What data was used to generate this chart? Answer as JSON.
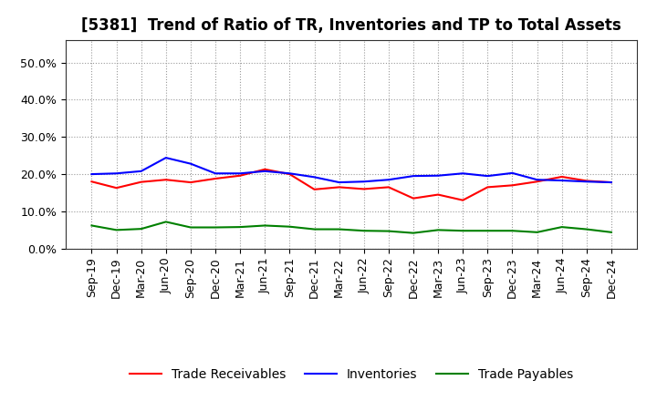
{
  "title": "[5381]  Trend of Ratio of TR, Inventories and TP to Total Assets",
  "ylim": [
    0.0,
    0.56
  ],
  "yticks": [
    0.0,
    0.1,
    0.2,
    0.3,
    0.4,
    0.5
  ],
  "ytick_labels": [
    "0.0%",
    "10.0%",
    "20.0%",
    "30.0%",
    "40.0%",
    "50.0%"
  ],
  "x_labels": [
    "Sep-19",
    "Dec-19",
    "Mar-20",
    "Jun-20",
    "Sep-20",
    "Dec-20",
    "Mar-21",
    "Jun-21",
    "Sep-21",
    "Dec-21",
    "Mar-22",
    "Jun-22",
    "Sep-22",
    "Dec-22",
    "Mar-23",
    "Jun-23",
    "Sep-23",
    "Dec-23",
    "Mar-24",
    "Jun-24",
    "Sep-24",
    "Dec-24"
  ],
  "trade_receivables": [
    0.18,
    0.163,
    0.179,
    0.185,
    0.178,
    0.188,
    0.196,
    0.213,
    0.2,
    0.159,
    0.165,
    0.16,
    0.165,
    0.135,
    0.145,
    0.13,
    0.165,
    0.17,
    0.18,
    0.193,
    0.182,
    0.178
  ],
  "inventories": [
    0.2,
    0.202,
    0.208,
    0.244,
    0.228,
    0.202,
    0.202,
    0.208,
    0.202,
    0.192,
    0.178,
    0.18,
    0.185,
    0.195,
    0.196,
    0.202,
    0.195,
    0.203,
    0.185,
    0.183,
    0.18,
    0.178
  ],
  "trade_payables": [
    0.062,
    0.05,
    0.053,
    0.072,
    0.057,
    0.057,
    0.058,
    0.062,
    0.059,
    0.052,
    0.052,
    0.048,
    0.047,
    0.042,
    0.05,
    0.048,
    0.048,
    0.048,
    0.044,
    0.058,
    0.052,
    0.044
  ],
  "tr_color": "#ff0000",
  "inv_color": "#0000ff",
  "tp_color": "#008000",
  "background_color": "#ffffff",
  "grid_color": "#999999",
  "title_fontsize": 12,
  "legend_fontsize": 10,
  "tick_fontsize": 9
}
